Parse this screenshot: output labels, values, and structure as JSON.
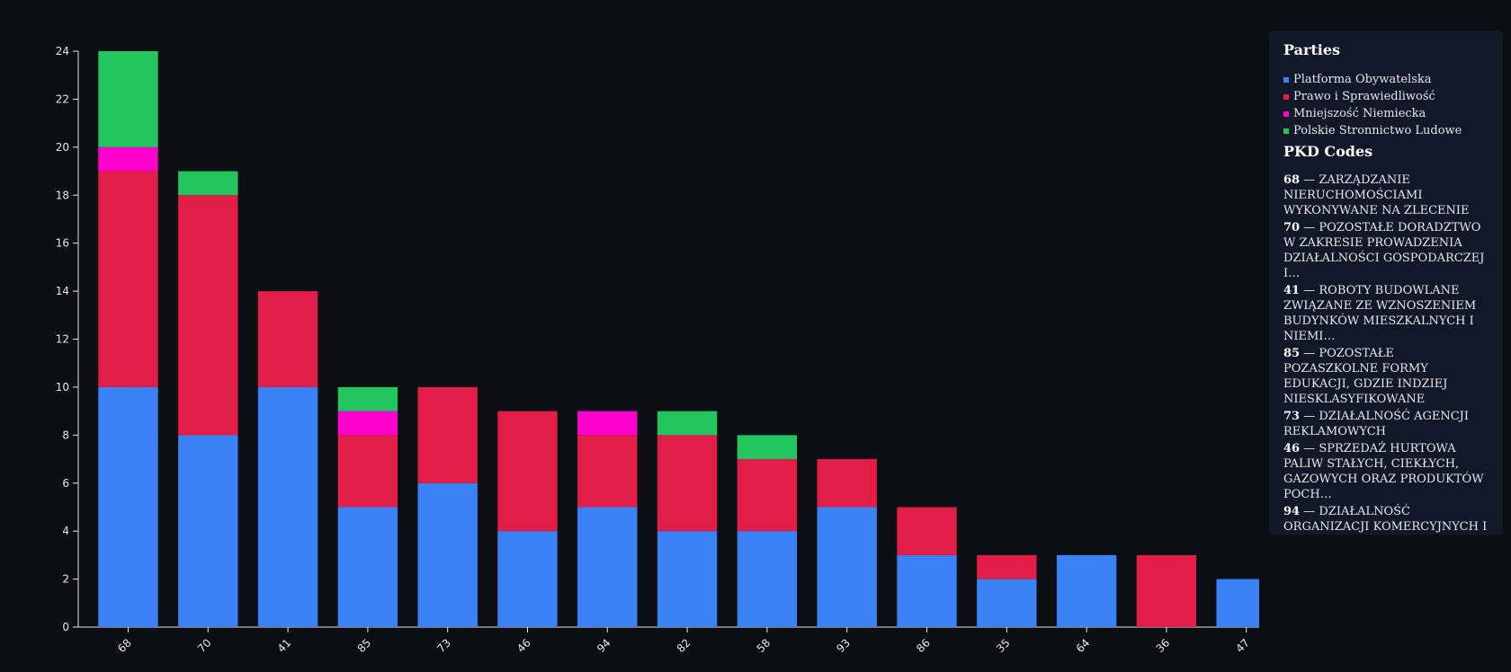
{
  "chart_data": {
    "type": "stacked_bar",
    "categories": [
      "68",
      "70",
      "41",
      "85",
      "73",
      "46",
      "94",
      "82",
      "58",
      "93",
      "86",
      "35",
      "64",
      "36",
      "47"
    ],
    "series": [
      {
        "name": "Platforma Obywatelska",
        "color": "#3b82f6",
        "values": [
          10,
          8,
          10,
          5,
          6,
          4,
          5,
          4,
          4,
          5,
          3,
          2,
          3,
          0,
          2
        ]
      },
      {
        "name": "Prawo i Sprawiedliwość",
        "color": "#e11d48",
        "values": [
          9,
          10,
          4,
          3,
          4,
          5,
          3,
          4,
          3,
          2,
          2,
          1,
          0,
          3,
          0
        ]
      },
      {
        "name": "Mniejszość Niemiecka",
        "color": "#ff00cc",
        "values": [
          1,
          0,
          0,
          1,
          0,
          0,
          1,
          0,
          0,
          0,
          0,
          0,
          0,
          0,
          0
        ]
      },
      {
        "name": "Polskie Stronnictwo Ludowe",
        "color": "#22c55e",
        "values": [
          4,
          1,
          0,
          1,
          0,
          0,
          0,
          1,
          1,
          0,
          0,
          0,
          0,
          0,
          0
        ]
      }
    ],
    "ylim": [
      0,
      24
    ],
    "yticks": [
      0,
      2,
      4,
      6,
      8,
      10,
      12,
      14,
      16,
      18,
      20,
      22,
      24
    ],
    "grid": false,
    "legend_title": "Parties"
  },
  "pkd_panel": {
    "title": "PKD Codes",
    "items": [
      {
        "code": "68",
        "description": "— ZARZĄDZANIE NIERUCHOMOŚCIAMI WYKONYWANE NA ZLECENIE"
      },
      {
        "code": "70",
        "description": "— POZOSTAŁE DORADZTWO W ZAKRESIE PROWADZENIA DZIAŁALNOŚCI GOSPODARCZEJ I…"
      },
      {
        "code": "41",
        "description": "— ROBOTY BUDOWLANE ZWIĄZANE ZE WZNOSZENIEM BUDYNKÓW MIESZKALNYCH I NIEMI…"
      },
      {
        "code": "85",
        "description": "— POZOSTAŁE POZASZKOLNE FORMY EDUKACJI, GDZIE INDZIEJ NIESKLASYFIKOWANE"
      },
      {
        "code": "73",
        "description": "— DZIAŁALNOŚĆ AGENCJI REKLAMOWYCH"
      },
      {
        "code": "46",
        "description": "— SPRZEDAŻ HURTOWA PALIW STAŁYCH, CIEKŁYCH, GAZOWYCH ORAZ PRODUKTÓW POCH…"
      },
      {
        "code": "94",
        "description": "— DZIAŁALNOŚĆ ORGANIZACJI KOMERCYJNYCH I PRACODAWCÓW"
      }
    ]
  }
}
